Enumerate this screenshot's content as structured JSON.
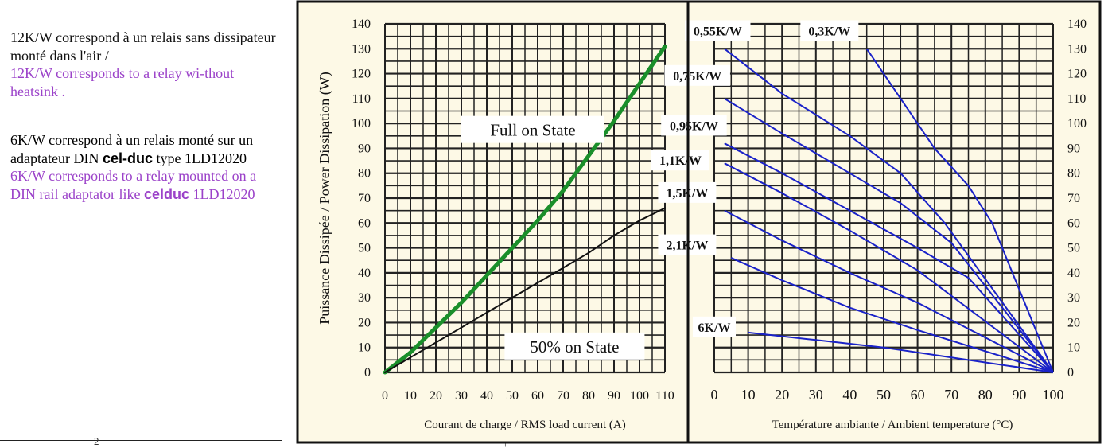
{
  "left_text": {
    "p1_fr": "12K/W correspond à un relais sans dissipateur monté dans l'air /",
    "p1_en": "12K/W corresponds to a relay wi-thout heatsink .",
    "p2_fr_a": "6K/W correspond à un relais monté sur un adaptateur DIN",
    "p2_brand": "cel-duc",
    "p2_fr_b": "type 1LD12020",
    "p2_en_a": "6K/W corresponds to a relay mounted on a DIN rail adaptator like",
    "p2_en_brand": "celduc",
    "p2_en_b": "1LD12020"
  },
  "footer_marks": {
    "mark_left": "2",
    "mark_right": "|"
  },
  "chart_data": [
    {
      "type": "line",
      "xlabel": "Courant de charge / RMS load current (A)",
      "ylabel": "Puissance Dissipée / Power Dissipation (W)",
      "xlim": [
        0,
        110
      ],
      "ylim": [
        0,
        140
      ],
      "x_ticks": [
        "0",
        "10",
        "20",
        "30",
        "40",
        "50",
        "60",
        "70",
        "80",
        "90",
        "100",
        "110"
      ],
      "y_ticks": [
        "0",
        "10",
        "20",
        "30",
        "40",
        "50",
        "60",
        "70",
        "80",
        "90",
        "100",
        "110",
        "120",
        "130",
        "140"
      ],
      "grid": true,
      "series": [
        {
          "name": "Full on State",
          "color": "#1a8f2a",
          "x": [
            0,
            10,
            20,
            30,
            40,
            50,
            60,
            70,
            80,
            90,
            100,
            110
          ],
          "y": [
            0,
            8,
            18,
            28,
            39,
            50,
            61,
            73,
            87,
            101,
            116,
            131
          ]
        },
        {
          "name": "50% on State",
          "color": "#111111",
          "x": [
            0,
            10,
            20,
            30,
            40,
            50,
            60,
            70,
            80,
            90,
            100,
            110
          ],
          "y": [
            0,
            6,
            12,
            18,
            24,
            30,
            36,
            42,
            48,
            55,
            61,
            66
          ]
        }
      ]
    },
    {
      "type": "line",
      "xlabel": "Température ambiante / Ambient temperature (°C)",
      "xlim": [
        0,
        100
      ],
      "ylim": [
        0,
        140
      ],
      "x_ticks": [
        "0",
        "10",
        "20",
        "30",
        "40",
        "50",
        "60",
        "70",
        "80",
        "90",
        "100"
      ],
      "y_ticks": [
        "0",
        "10",
        "20",
        "30",
        "40",
        "50",
        "60",
        "70",
        "80",
        "90",
        "100",
        "110",
        "120",
        "130",
        "140"
      ],
      "grid": true,
      "series": [
        {
          "name": "0,3K/W",
          "color": "#1a22c8",
          "x": [
            45,
            55,
            65,
            75,
            82,
            100
          ],
          "y": [
            130,
            110,
            90,
            75,
            60,
            0
          ]
        },
        {
          "name": "0,55K/W",
          "color": "#1a22c8",
          "x": [
            3,
            20,
            40,
            55,
            68,
            100
          ],
          "y": [
            130,
            112,
            95,
            80,
            60,
            0
          ]
        },
        {
          "name": "0,75K/W",
          "color": "#1a22c8",
          "x": [
            3,
            20,
            40,
            55,
            70,
            100
          ],
          "y": [
            110,
            96,
            80,
            68,
            52,
            0
          ]
        },
        {
          "name": "0,95K/W",
          "color": "#1a22c8",
          "x": [
            3,
            20,
            40,
            60,
            75,
            100
          ],
          "y": [
            92,
            80,
            65,
            50,
            38,
            0
          ]
        },
        {
          "name": "1,1K/W",
          "color": "#1a22c8",
          "x": [
            3,
            20,
            40,
            60,
            100
          ],
          "y": [
            84,
            72,
            57,
            41,
            0
          ]
        },
        {
          "name": "1,5K/W",
          "color": "#1a22c8",
          "x": [
            3,
            20,
            40,
            60,
            100
          ],
          "y": [
            65,
            53,
            40,
            28,
            0
          ]
        },
        {
          "name": "2,1K/W",
          "color": "#1a22c8",
          "x": [
            5,
            20,
            40,
            60,
            100
          ],
          "y": [
            46,
            37,
            26,
            17,
            0
          ]
        },
        {
          "name": "6K/W",
          "color": "#1a22c8",
          "x": [
            10,
            30,
            50,
            70,
            100
          ],
          "y": [
            16,
            13,
            10,
            6,
            0
          ]
        }
      ]
    }
  ]
}
